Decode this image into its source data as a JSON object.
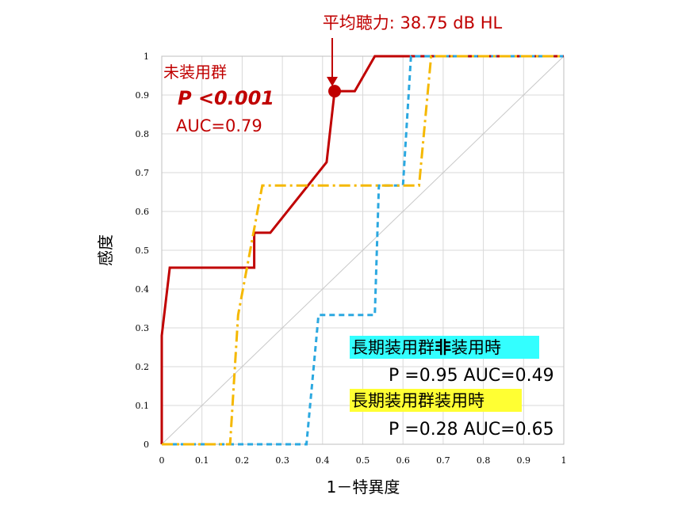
{
  "chart_data": {
    "type": "line",
    "xlabel": "1－特異度",
    "ylabel": "感度",
    "xlim": [
      0,
      1
    ],
    "ylim": [
      0,
      1
    ],
    "x_ticks": [
      "0",
      "0.1",
      "0.2",
      "0.3",
      "0.4",
      "0.5",
      "0.6",
      "0.7",
      "0.8",
      "0.9",
      "1"
    ],
    "y_ticks": [
      "0",
      "0.1",
      "0.2",
      "0.3",
      "0.4",
      "0.5",
      "0.6",
      "0.7",
      "0.8",
      "0.9",
      "1"
    ],
    "grid": true,
    "diagonal_reference": true,
    "series": [
      {
        "color": "#c00000",
        "style": "solid",
        "points": [
          [
            0,
            0
          ],
          [
            0,
            0.28
          ],
          [
            0.02,
            0.455
          ],
          [
            0.23,
            0.455
          ],
          [
            0.23,
            0.545
          ],
          [
            0.27,
            0.545
          ],
          [
            0.41,
            0.727
          ],
          [
            0.43,
            0.91
          ],
          [
            0.48,
            0.91
          ],
          [
            0.53,
            1.0
          ],
          [
            1.0,
            1.0
          ]
        ]
      },
      {
        "color": "#2ba8e0",
        "style": "dashed",
        "points": [
          [
            0,
            0
          ],
          [
            0.36,
            0
          ],
          [
            0.39,
            0.333
          ],
          [
            0.53,
            0.333
          ],
          [
            0.54,
            0.667
          ],
          [
            0.6,
            0.667
          ],
          [
            0.62,
            1.0
          ],
          [
            1.0,
            1.0
          ]
        ]
      },
      {
        "color": "#f5b800",
        "style": "dashdot",
        "points": [
          [
            0,
            0
          ],
          [
            0.17,
            0
          ],
          [
            0.19,
            0.333
          ],
          [
            0.25,
            0.667
          ],
          [
            0.64,
            0.667
          ],
          [
            0.67,
            1.0
          ],
          [
            1.0,
            1.0
          ]
        ]
      }
    ],
    "marker": {
      "x": 0.43,
      "y": 0.91,
      "color": "#c00000"
    },
    "annotations": {
      "mean_hearing": "平均聴力: 38.75 dB HL",
      "unused_group": {
        "name": "未装用群",
        "p": "P <0.001",
        "auc": "AUC=0.79",
        "color": "#c00000"
      },
      "long_non_wearing": {
        "name_part1": "長期装用群",
        "name_bold": "非",
        "name_part2": "装用時",
        "stats": "P =0.95 AUC=0.49",
        "highlight": "#33ffff"
      },
      "long_wearing": {
        "name": "長期装用群装用時",
        "stats": "P =0.28 AUC=0.65",
        "highlight": "#ffff33"
      }
    }
  }
}
